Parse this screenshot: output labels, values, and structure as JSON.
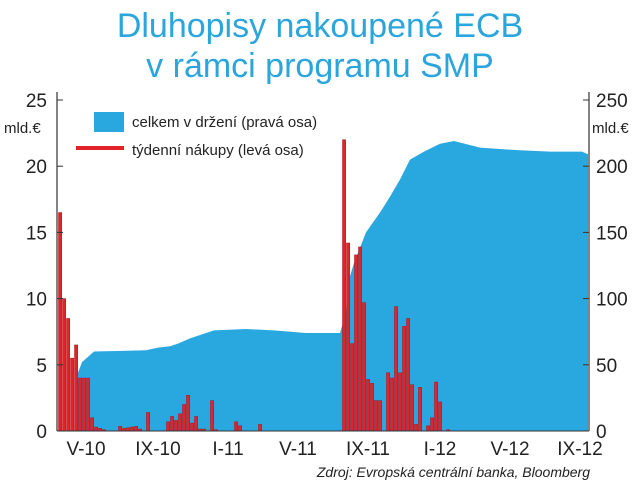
{
  "title_line1": "Dluhopisy nakoupené ECB",
  "title_line2": "v rámci programu SMP",
  "chart_data": {
    "type": "bar+area",
    "title": "Dluhopisy nakoupené ECB v rámci programu SMP",
    "left_axis": {
      "unit": "mld.€",
      "range": [
        0,
        25
      ],
      "ticks": [
        "0",
        "5",
        "10",
        "15",
        "20",
        "25"
      ]
    },
    "right_axis": {
      "unit": "mld.€",
      "range": [
        0,
        250
      ],
      "ticks": [
        "0",
        "50",
        "100",
        "150",
        "200",
        "250"
      ]
    },
    "x_ticks": [
      {
        "label": "V-10",
        "week": 7
      },
      {
        "label": "IX-10",
        "week": 25
      },
      {
        "label": "I-11",
        "week": 42.5
      },
      {
        "label": "V-11",
        "week": 60
      },
      {
        "label": "IX-11",
        "week": 77.5
      },
      {
        "label": "I-12",
        "week": 95.5
      },
      {
        "label": "V-12",
        "week": 113
      },
      {
        "label": "IX-12",
        "week": 130.5
      }
    ],
    "weeks_total": 133,
    "legend": [
      {
        "label": "celkem v držení (pravá osa)",
        "color": "#29a8e0",
        "kind": "area"
      },
      {
        "label": "týdenní nákupy (levá osa)",
        "color": "#e3232b",
        "kind": "bar"
      }
    ],
    "series": [
      {
        "name": "týdenní nákupy (levá osa)",
        "axis": "left",
        "type": "bar",
        "points": [
          [
            0,
            16.5
          ],
          [
            1,
            10
          ],
          [
            2,
            8.5
          ],
          [
            3,
            5.5
          ],
          [
            4,
            6.5
          ],
          [
            5,
            4
          ],
          [
            6,
            4
          ],
          [
            7,
            4
          ],
          [
            8,
            1
          ],
          [
            9,
            0.3
          ],
          [
            10,
            0.2
          ],
          [
            11,
            0.1
          ],
          [
            15,
            0.35
          ],
          [
            16,
            0.2
          ],
          [
            17,
            0.25
          ],
          [
            18,
            0.3
          ],
          [
            19,
            0.35
          ],
          [
            20,
            0.15
          ],
          [
            22,
            1.4
          ],
          [
            27,
            0.7
          ],
          [
            28,
            1.1
          ],
          [
            29,
            0.8
          ],
          [
            30,
            1.3
          ],
          [
            31,
            2
          ],
          [
            32,
            2.7
          ],
          [
            33,
            0.6
          ],
          [
            34,
            1.1
          ],
          [
            35,
            0.15
          ],
          [
            36,
            0.15
          ],
          [
            38,
            2.3
          ],
          [
            39,
            0.1
          ],
          [
            44,
            0.7
          ],
          [
            45,
            0.4
          ],
          [
            50,
            0.5
          ],
          [
            71,
            22
          ],
          [
            72,
            14.2
          ],
          [
            73,
            6.6
          ],
          [
            74,
            13.3
          ],
          [
            75,
            13.9
          ],
          [
            76,
            9.7
          ],
          [
            77,
            3.9
          ],
          [
            78,
            3.6
          ],
          [
            79,
            2.3
          ],
          [
            80,
            2.3
          ],
          [
            82,
            4.4
          ],
          [
            83,
            4
          ],
          [
            84,
            9.4
          ],
          [
            85,
            4.4
          ],
          [
            86,
            7.9
          ],
          [
            87,
            8.5
          ],
          [
            88,
            3.5
          ],
          [
            89,
            0.5
          ],
          [
            90,
            3.3
          ],
          [
            92,
            0.4
          ],
          [
            93,
            1.0
          ],
          [
            94,
            3.7
          ],
          [
            95,
            2.2
          ],
          [
            97,
            0.1
          ]
        ]
      },
      {
        "name": "celkem v držení (pravá osa)",
        "axis": "right",
        "type": "area",
        "points": [
          [
            4.5,
            40
          ],
          [
            6,
            52
          ],
          [
            9,
            60
          ],
          [
            22,
            61
          ],
          [
            25,
            63
          ],
          [
            28,
            64
          ],
          [
            30,
            66
          ],
          [
            33,
            70
          ],
          [
            36,
            73
          ],
          [
            39,
            76
          ],
          [
            47,
            77
          ],
          [
            54,
            76
          ],
          [
            62,
            74
          ],
          [
            70.5,
            74
          ],
          [
            72,
            90
          ],
          [
            72.5,
            112
          ],
          [
            74,
            127
          ],
          [
            77,
            150
          ],
          [
            80.5,
            165
          ],
          [
            83,
            177
          ],
          [
            85.5,
            190
          ],
          [
            88,
            205
          ],
          [
            91.5,
            211
          ],
          [
            95.5,
            217
          ],
          [
            99,
            219
          ],
          [
            105.5,
            214
          ],
          [
            115.5,
            212
          ],
          [
            123,
            211
          ],
          [
            131,
            211
          ],
          [
            132.5,
            209
          ]
        ]
      }
    ],
    "source": "Zdroj: Evropská centrální banka, Bloomberg"
  }
}
